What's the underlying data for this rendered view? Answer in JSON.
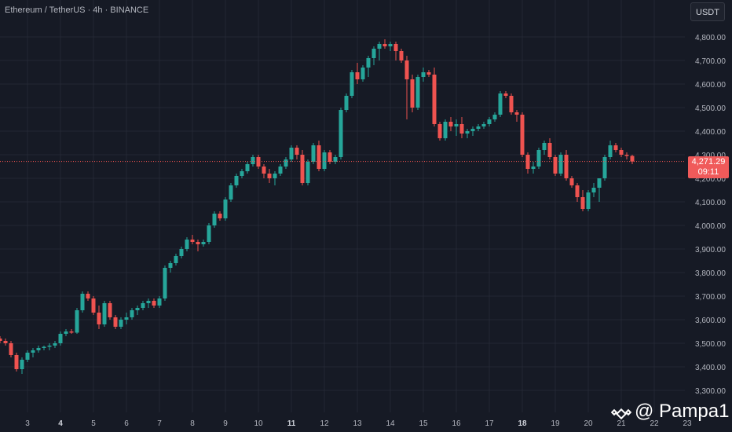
{
  "header": {
    "title": "Ethereum / TetherUS · 4h · BINANCE",
    "currency_button": "USDT"
  },
  "price_tag": {
    "price": "4,271.29",
    "countdown": "09:11"
  },
  "watermark": {
    "text": "@ Pampa1"
  },
  "colors": {
    "bull": "#26a69a",
    "bear": "#ef5350",
    "background": "#161a25",
    "grid": "#232733",
    "axis_text": "#b2b5be"
  },
  "chart_data": {
    "type": "candlestick",
    "title": "Ethereum / TetherUS · 4h · BINANCE",
    "xlabel": "",
    "ylabel": "",
    "grid": true,
    "y_ticks": [
      "4,800.00",
      "4,700.00",
      "4,600.00",
      "4,500.00",
      "4,400.00",
      "4,300.00",
      "4,200.00",
      "4,100.00",
      "4,000.00",
      "3,900.00",
      "3,800.00",
      "3,700.00",
      "3,600.00",
      "3,500.00",
      "3,400.00",
      "3,300.00"
    ],
    "y_tick_values": [
      4800,
      4700,
      4600,
      4500,
      4400,
      4300,
      4200,
      4100,
      4000,
      3900,
      3800,
      3700,
      3600,
      3500,
      3400,
      3300
    ],
    "ylim": [
      3260,
      4880
    ],
    "x_ticks": [
      {
        "label": "3",
        "index": 5,
        "bold": false
      },
      {
        "label": "4",
        "index": 11,
        "bold": true
      },
      {
        "label": "5",
        "index": 17,
        "bold": false
      },
      {
        "label": "6",
        "index": 23,
        "bold": false
      },
      {
        "label": "7",
        "index": 29,
        "bold": false
      },
      {
        "label": "8",
        "index": 35,
        "bold": false
      },
      {
        "label": "9",
        "index": 41,
        "bold": false
      },
      {
        "label": "10",
        "index": 47,
        "bold": false
      },
      {
        "label": "11",
        "index": 53,
        "bold": true
      },
      {
        "label": "12",
        "index": 59,
        "bold": false
      },
      {
        "label": "13",
        "index": 65,
        "bold": false
      },
      {
        "label": "14",
        "index": 71,
        "bold": false
      },
      {
        "label": "15",
        "index": 77,
        "bold": false
      },
      {
        "label": "16",
        "index": 83,
        "bold": false
      },
      {
        "label": "17",
        "index": 89,
        "bold": false
      },
      {
        "label": "18",
        "index": 95,
        "bold": true
      },
      {
        "label": "19",
        "index": 101,
        "bold": false
      },
      {
        "label": "20",
        "index": 107,
        "bold": false
      },
      {
        "label": "21",
        "index": 113,
        "bold": false
      },
      {
        "label": "22",
        "index": 119,
        "bold": false
      },
      {
        "label": "23",
        "index": 125,
        "bold": false
      }
    ],
    "last_price": 4271.29,
    "candles": [
      [
        3520,
        3530,
        3500,
        3510
      ],
      [
        3510,
        3520,
        3490,
        3500
      ],
      [
        3500,
        3510,
        3440,
        3450
      ],
      [
        3450,
        3460,
        3380,
        3390
      ],
      [
        3390,
        3440,
        3370,
        3430
      ],
      [
        3430,
        3470,
        3420,
        3460
      ],
      [
        3460,
        3480,
        3440,
        3470
      ],
      [
        3470,
        3490,
        3460,
        3480
      ],
      [
        3480,
        3490,
        3470,
        3485
      ],
      [
        3485,
        3500,
        3470,
        3490
      ],
      [
        3490,
        3510,
        3480,
        3500
      ],
      [
        3500,
        3550,
        3490,
        3540
      ],
      [
        3540,
        3560,
        3530,
        3550
      ],
      [
        3550,
        3560,
        3540,
        3545
      ],
      [
        3545,
        3650,
        3540,
        3640
      ],
      [
        3640,
        3720,
        3630,
        3710
      ],
      [
        3710,
        3720,
        3680,
        3690
      ],
      [
        3690,
        3700,
        3620,
        3630
      ],
      [
        3630,
        3660,
        3560,
        3580
      ],
      [
        3580,
        3680,
        3570,
        3670
      ],
      [
        3670,
        3680,
        3600,
        3610
      ],
      [
        3610,
        3620,
        3560,
        3570
      ],
      [
        3570,
        3610,
        3560,
        3600
      ],
      [
        3600,
        3630,
        3580,
        3610
      ],
      [
        3610,
        3650,
        3600,
        3640
      ],
      [
        3640,
        3660,
        3620,
        3650
      ],
      [
        3650,
        3680,
        3640,
        3670
      ],
      [
        3670,
        3690,
        3650,
        3680
      ],
      [
        3680,
        3690,
        3650,
        3660
      ],
      [
        3660,
        3700,
        3650,
        3690
      ],
      [
        3690,
        3830,
        3680,
        3820
      ],
      [
        3820,
        3850,
        3800,
        3840
      ],
      [
        3840,
        3880,
        3830,
        3870
      ],
      [
        3870,
        3910,
        3860,
        3900
      ],
      [
        3900,
        3950,
        3890,
        3940
      ],
      [
        3940,
        3960,
        3920,
        3930
      ],
      [
        3930,
        3940,
        3890,
        3920
      ],
      [
        3920,
        3940,
        3910,
        3930
      ],
      [
        3930,
        4010,
        3920,
        4000
      ],
      [
        4000,
        4060,
        3990,
        4050
      ],
      [
        4050,
        4060,
        4020,
        4030
      ],
      [
        4030,
        4120,
        4020,
        4110
      ],
      [
        4110,
        4180,
        4100,
        4170
      ],
      [
        4170,
        4220,
        4160,
        4210
      ],
      [
        4210,
        4240,
        4200,
        4230
      ],
      [
        4230,
        4270,
        4220,
        4260
      ],
      [
        4260,
        4300,
        4250,
        4290
      ],
      [
        4290,
        4300,
        4240,
        4250
      ],
      [
        4250,
        4260,
        4200,
        4220
      ],
      [
        4220,
        4240,
        4180,
        4200
      ],
      [
        4200,
        4230,
        4170,
        4220
      ],
      [
        4220,
        4260,
        4210,
        4250
      ],
      [
        4250,
        4290,
        4240,
        4280
      ],
      [
        4280,
        4340,
        4270,
        4330
      ],
      [
        4330,
        4340,
        4280,
        4300
      ],
      [
        4300,
        4320,
        4170,
        4180
      ],
      [
        4180,
        4280,
        4170,
        4270
      ],
      [
        4270,
        4350,
        4260,
        4340
      ],
      [
        4340,
        4360,
        4230,
        4240
      ],
      [
        4240,
        4320,
        4230,
        4310
      ],
      [
        4310,
        4320,
        4260,
        4270
      ],
      [
        4270,
        4300,
        4260,
        4290
      ],
      [
        4290,
        4500,
        4280,
        4490
      ],
      [
        4490,
        4560,
        4480,
        4550
      ],
      [
        4550,
        4660,
        4540,
        4650
      ],
      [
        4650,
        4690,
        4600,
        4620
      ],
      [
        4620,
        4680,
        4610,
        4670
      ],
      [
        4670,
        4720,
        4630,
        4710
      ],
      [
        4710,
        4760,
        4680,
        4750
      ],
      [
        4750,
        4780,
        4700,
        4770
      ],
      [
        4770,
        4790,
        4750,
        4760
      ],
      [
        4760,
        4780,
        4740,
        4770
      ],
      [
        4770,
        4780,
        4700,
        4740
      ],
      [
        4740,
        4750,
        4690,
        4700
      ],
      [
        4700,
        4720,
        4450,
        4620
      ],
      [
        4620,
        4640,
        4480,
        4500
      ],
      [
        4500,
        4640,
        4490,
        4630
      ],
      [
        4630,
        4670,
        4610,
        4650
      ],
      [
        4650,
        4660,
        4630,
        4640
      ],
      [
        4640,
        4670,
        4420,
        4430
      ],
      [
        4430,
        4440,
        4360,
        4370
      ],
      [
        4370,
        4450,
        4360,
        4440
      ],
      [
        4440,
        4460,
        4400,
        4420
      ],
      [
        4420,
        4450,
        4380,
        4430
      ],
      [
        4430,
        4460,
        4370,
        4390
      ],
      [
        4390,
        4410,
        4370,
        4400
      ],
      [
        4400,
        4420,
        4380,
        4410
      ],
      [
        4410,
        4430,
        4400,
        4420
      ],
      [
        4420,
        4440,
        4410,
        4430
      ],
      [
        4430,
        4460,
        4420,
        4450
      ],
      [
        4450,
        4480,
        4440,
        4470
      ],
      [
        4470,
        4570,
        4460,
        4560
      ],
      [
        4560,
        4570,
        4540,
        4550
      ],
      [
        4550,
        4560,
        4470,
        4480
      ],
      [
        4480,
        4490,
        4440,
        4470
      ],
      [
        4470,
        4480,
        4290,
        4300
      ],
      [
        4300,
        4310,
        4220,
        4240
      ],
      [
        4240,
        4270,
        4220,
        4250
      ],
      [
        4250,
        4330,
        4240,
        4320
      ],
      [
        4320,
        4360,
        4300,
        4350
      ],
      [
        4350,
        4370,
        4280,
        4290
      ],
      [
        4290,
        4300,
        4210,
        4220
      ],
      [
        4220,
        4310,
        4210,
        4300
      ],
      [
        4300,
        4320,
        4190,
        4200
      ],
      [
        4200,
        4210,
        4160,
        4170
      ],
      [
        4170,
        4180,
        4100,
        4120
      ],
      [
        4120,
        4150,
        4060,
        4070
      ],
      [
        4070,
        4150,
        4060,
        4140
      ],
      [
        4140,
        4180,
        4120,
        4160
      ],
      [
        4160,
        4200,
        4100,
        4200
      ],
      [
        4200,
        4300,
        4190,
        4290
      ],
      [
        4290,
        4360,
        4280,
        4340
      ],
      [
        4340,
        4350,
        4310,
        4320
      ],
      [
        4320,
        4330,
        4290,
        4300
      ],
      [
        4300,
        4310,
        4280,
        4295
      ],
      [
        4295,
        4300,
        4260,
        4271.29
      ]
    ]
  }
}
